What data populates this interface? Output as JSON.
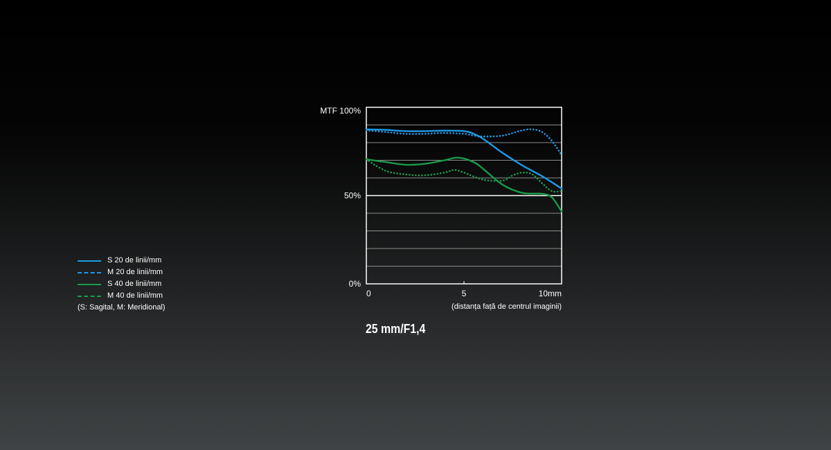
{
  "chart_data": {
    "type": "line",
    "title": "25 mm/F1,4",
    "ylabel": "MTF 100%",
    "xlabel": "(distanța față de centrul imaginii)",
    "xlim": [
      0,
      10
    ],
    "ylim": [
      0,
      100
    ],
    "x_ticks": [
      {
        "value": 0,
        "label": "0"
      },
      {
        "value": 5,
        "label": "5"
      },
      {
        "value": 10,
        "label": "10mm"
      }
    ],
    "y_ticks": [
      {
        "value": 0,
        "label": "0%"
      },
      {
        "value": 50,
        "label": "50%"
      }
    ],
    "grid": true,
    "legend_position": "left",
    "series": [
      {
        "name": "S  20 de linii/mm",
        "color": "#1e9be8",
        "style": "solid",
        "points": [
          [
            0,
            87.5
          ],
          [
            1,
            87.2
          ],
          [
            2,
            86.5
          ],
          [
            3,
            86.5
          ],
          [
            4,
            86.8
          ],
          [
            5,
            86.5
          ],
          [
            5.5,
            85
          ],
          [
            6,
            82
          ],
          [
            7,
            74
          ],
          [
            8,
            67
          ],
          [
            9,
            61
          ],
          [
            10,
            54
          ]
        ]
      },
      {
        "name": "M 20 de linii/mm",
        "color": "#1e9be8",
        "style": "dotted",
        "points": [
          [
            0,
            87
          ],
          [
            1,
            86
          ],
          [
            2,
            85
          ],
          [
            3,
            85
          ],
          [
            4,
            85.5
          ],
          [
            5,
            85
          ],
          [
            5.5,
            84
          ],
          [
            6,
            83.5
          ],
          [
            7,
            84
          ],
          [
            8,
            87
          ],
          [
            8.5,
            87.5
          ],
          [
            9,
            86
          ],
          [
            9.5,
            81
          ],
          [
            10,
            73
          ]
        ]
      },
      {
        "name": "S  40 de linii/mm",
        "color": "#1a9a4a",
        "style": "solid",
        "points": [
          [
            0,
            70.5
          ],
          [
            1,
            69
          ],
          [
            2,
            67.5
          ],
          [
            3,
            68
          ],
          [
            4,
            70
          ],
          [
            4.7,
            71.5
          ],
          [
            5.5,
            69
          ],
          [
            6,
            65
          ],
          [
            7,
            56
          ],
          [
            8,
            51.5
          ],
          [
            9,
            51
          ],
          [
            9.5,
            49
          ],
          [
            10,
            41
          ]
        ]
      },
      {
        "name": "M 40 de linii/mm",
        "color": "#1a9a4a",
        "style": "dotted",
        "points": [
          [
            0,
            70.5
          ],
          [
            1,
            64
          ],
          [
            2,
            62
          ],
          [
            3,
            61.5
          ],
          [
            4,
            63
          ],
          [
            4.5,
            64.5
          ],
          [
            5,
            63
          ],
          [
            6,
            59
          ],
          [
            7,
            58.5
          ],
          [
            7.5,
            61.5
          ],
          [
            8,
            63
          ],
          [
            8.5,
            62
          ],
          [
            9,
            57
          ],
          [
            9.5,
            52.5
          ],
          [
            10,
            52.5
          ]
        ]
      }
    ],
    "legend_note": "(S: Sagital, M: Meridional)"
  }
}
